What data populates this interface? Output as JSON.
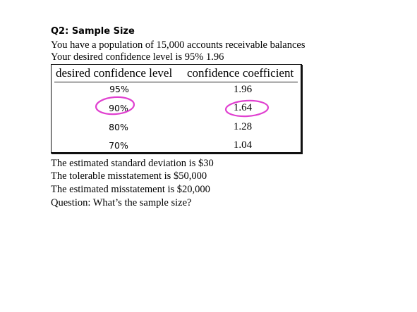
{
  "question": {
    "title": "Q2: Sample Size",
    "lines": [
      "You have a population of 15,000 accounts receivable balances",
      "Your desired confidence level is 95% 1.96"
    ]
  },
  "table": {
    "headers": [
      "desired confidence level",
      "confidence coefficient"
    ],
    "rows": [
      {
        "level": "95%",
        "coefficient": "1.96"
      },
      {
        "level": "90%",
        "coefficient": "1.64"
      },
      {
        "level": "80%",
        "coefficient": "1.28"
      },
      {
        "level": "70%",
        "coefficient": "1.04"
      }
    ],
    "highlighted_row": "90%"
  },
  "details": [
    "The estimated standard deviation is $30",
    "The tolerable misstatement is $50,000",
    "The estimated misstatement is $20,000",
    "Question: What’s the sample size?"
  ],
  "colors": {
    "highlight_circle": "#e040d0",
    "text": "#000000"
  }
}
